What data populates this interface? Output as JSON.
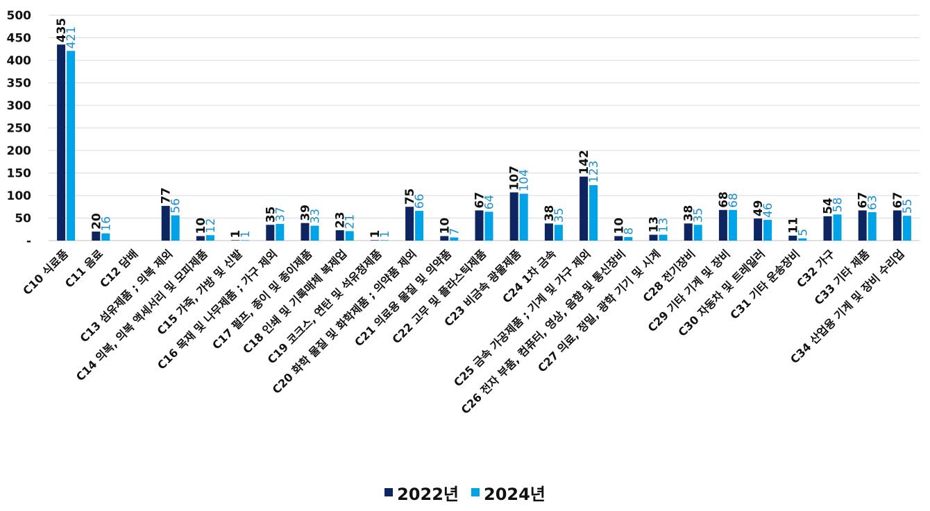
{
  "chart_data": {
    "type": "bar",
    "categories": [
      "C10 식료품",
      "C11 음료",
      "C12 담배",
      "C13 섬유제품 ; 의복 제외",
      "C14 의복, 의복 액세서리 및 모피제품",
      "C15 가죽, 가방 및 신발",
      "C16 목재 및 나무제품 ; 가구 제외",
      "C17 펄프, 종이 및 종이제품",
      "C18 인쇄 및 기록매체 복제업",
      "C19 코크스, 연탄 및 석유정제품",
      "C20 화학 물질 및 화학제품 ; 의약품 제외",
      "C21 의료용 물질 및 의약품",
      "C22 고무 및 플라스틱제품",
      "C23 비금속 광물제품",
      "C24 1차 금속",
      "C25 금속 가공제품 ; 기계 및 가구 제외",
      "C26 전자 부품, 컴퓨터, 영상, 음향 및 통신장비",
      "C27 의료, 정밀, 광학 기기 및 시계",
      "C28 전기장비",
      "C29 기타 기계 및 장비",
      "C30 자동차 및 트레일러",
      "C31 기타 운송장비",
      "C32 가구",
      "C33 기타 제품",
      "C34 산업용 기계 및 장비 수리업"
    ],
    "series": [
      {
        "name": "2022년",
        "color": "#0d2561",
        "label_color": "#111111",
        "values": [
          435,
          20,
          0,
          77,
          10,
          1,
          35,
          39,
          23,
          1,
          75,
          10,
          67,
          107,
          38,
          142,
          10,
          13,
          38,
          68,
          49,
          11,
          54,
          67,
          67
        ],
        "labels": [
          "435",
          "20",
          "",
          "77",
          "10",
          "1",
          "35",
          "39",
          "23",
          "1",
          "75",
          "10",
          "67",
          "107",
          "38",
          "142",
          "10",
          "13",
          "38",
          "68",
          "49",
          "11",
          "54",
          "67",
          "67"
        ]
      },
      {
        "name": "2024년",
        "color": "#00a3e8",
        "label_color": "#1b8fd1",
        "values": [
          421,
          16,
          0,
          56,
          12,
          1,
          37,
          33,
          21,
          1,
          66,
          7,
          64,
          104,
          35,
          123,
          8,
          13,
          35,
          68,
          46,
          5,
          58,
          63,
          55
        ],
        "labels": [
          "421",
          "16",
          "",
          "56",
          "12",
          "1",
          "37",
          "33",
          "21",
          "1",
          "66",
          "7",
          "64",
          "104",
          "35",
          "123",
          "8",
          "13",
          "35",
          "68",
          "46",
          "5",
          "58",
          "63",
          "55"
        ]
      }
    ],
    "yticks": [
      "-",
      "50",
      "100",
      "150",
      "200",
      "250",
      "300",
      "350",
      "400",
      "450",
      "500"
    ],
    "ylim": [
      0,
      500
    ],
    "grid": true,
    "legend_position": "bottom"
  }
}
